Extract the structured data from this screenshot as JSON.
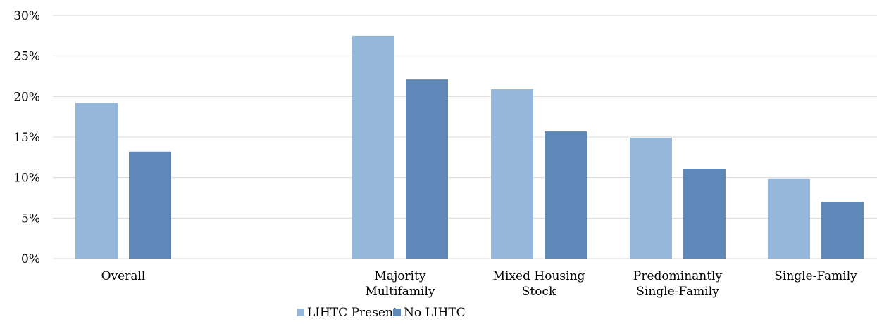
{
  "chart_data": {
    "type": "bar",
    "title": "",
    "xlabel": "",
    "ylabel": "",
    "ylim": [
      0,
      30
    ],
    "y_ticks": [
      0,
      5,
      10,
      15,
      20,
      25,
      30
    ],
    "y_tick_labels": [
      "0%",
      "5%",
      "10%",
      "15%",
      "20%",
      "25%",
      "30%"
    ],
    "y_unit": "%",
    "grid": true,
    "legend_position": "bottom",
    "categories": [
      [
        "Overall"
      ],
      [
        "Majority",
        "Multifamily"
      ],
      [
        "Mixed Housing",
        "Stock"
      ],
      [
        "Predominantly",
        "Single-Family"
      ],
      [
        "Single-Family"
      ]
    ],
    "series": [
      {
        "name": "LIHTC Present",
        "color": "#95b8da",
        "values": [
          19.2,
          27.5,
          20.9,
          14.9,
          9.9
        ]
      },
      {
        "name": "No LIHTC",
        "color": "#5f88b9",
        "values": [
          13.2,
          22.1,
          15.7,
          11.1,
          7.0
        ]
      }
    ]
  }
}
